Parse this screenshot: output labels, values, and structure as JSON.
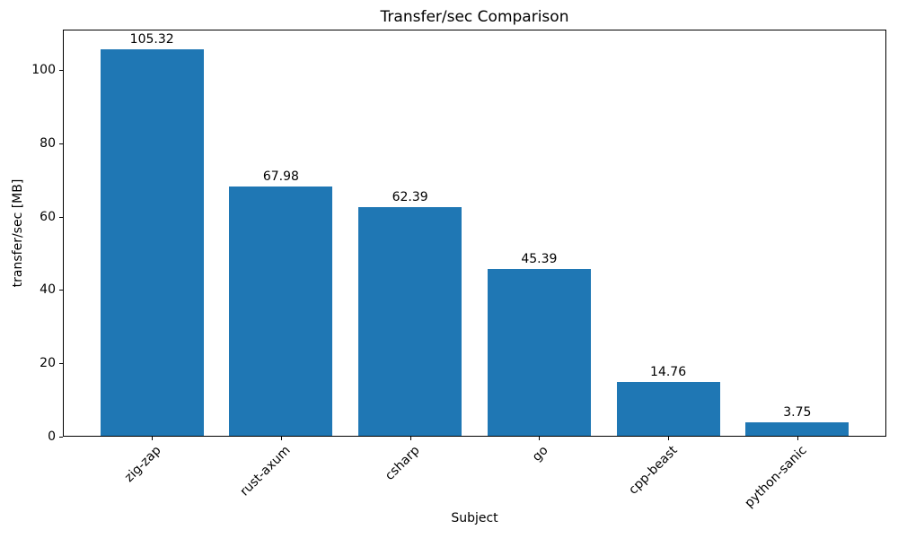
{
  "chart_data": {
    "type": "bar",
    "title": "Transfer/sec Comparison",
    "xlabel": "Subject",
    "ylabel": "transfer/sec [MB]",
    "categories": [
      "zig-zap",
      "rust-axum",
      "csharp",
      "go",
      "cpp-beast",
      "python-sanic"
    ],
    "values": [
      105.32,
      67.98,
      62.39,
      45.39,
      14.76,
      3.75
    ],
    "bar_value_labels": [
      "105.32",
      "67.98",
      "62.39",
      "45.39",
      "14.76",
      "3.75"
    ],
    "yticks": [
      0,
      20,
      40,
      60,
      80,
      100
    ],
    "ylim": [
      0,
      111
    ],
    "xtick_rotation_deg": 45,
    "bar_color": "#1f77b4",
    "text_color": "#000000",
    "spine_color": "#000000",
    "grid": false,
    "legend": "none"
  }
}
